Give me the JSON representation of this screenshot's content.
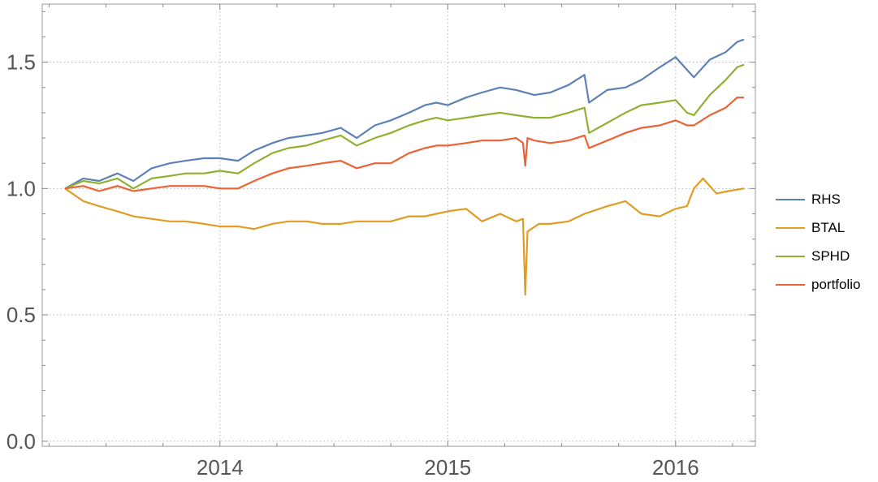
{
  "chart_data": {
    "type": "line",
    "title": "",
    "xlabel": "",
    "ylabel": "",
    "xlim": [
      2013.22,
      2016.35
    ],
    "ylim": [
      -0.02,
      1.73
    ],
    "x_ticks": [
      2014,
      2015,
      2016
    ],
    "x_tick_labels": [
      "2014",
      "2015",
      "2016"
    ],
    "y_ticks": [
      0.0,
      0.5,
      1.0,
      1.5
    ],
    "y_tick_labels": [
      "0.0",
      "0.5",
      "1.0",
      "1.5"
    ],
    "grid": true,
    "legend_position": "right",
    "series": [
      {
        "name": "RHS",
        "color": "#5E81B5",
        "x": [
          2013.32,
          2013.4,
          2013.47,
          2013.55,
          2013.62,
          2013.7,
          2013.78,
          2013.85,
          2013.93,
          2014.0,
          2014.08,
          2014.15,
          2014.23,
          2014.3,
          2014.38,
          2014.45,
          2014.53,
          2014.6,
          2014.68,
          2014.75,
          2014.83,
          2014.9,
          2014.95,
          2015.0,
          2015.08,
          2015.15,
          2015.23,
          2015.3,
          2015.38,
          2015.45,
          2015.53,
          2015.6,
          2015.62,
          2015.7,
          2015.78,
          2015.85,
          2015.93,
          2016.0,
          2016.05,
          2016.08,
          2016.15,
          2016.22,
          2016.27,
          2016.3
        ],
        "y": [
          1.0,
          1.04,
          1.03,
          1.06,
          1.03,
          1.08,
          1.1,
          1.11,
          1.12,
          1.12,
          1.11,
          1.15,
          1.18,
          1.2,
          1.21,
          1.22,
          1.24,
          1.2,
          1.25,
          1.27,
          1.3,
          1.33,
          1.34,
          1.33,
          1.36,
          1.38,
          1.4,
          1.39,
          1.37,
          1.38,
          1.41,
          1.45,
          1.34,
          1.39,
          1.4,
          1.43,
          1.48,
          1.52,
          1.47,
          1.44,
          1.51,
          1.54,
          1.58,
          1.59
        ]
      },
      {
        "name": "BTAL",
        "color": "#E19C24",
        "x": [
          2013.32,
          2013.4,
          2013.47,
          2013.55,
          2013.62,
          2013.7,
          2013.78,
          2013.85,
          2013.93,
          2014.0,
          2014.08,
          2014.15,
          2014.23,
          2014.3,
          2014.38,
          2014.45,
          2014.53,
          2014.6,
          2014.68,
          2014.75,
          2014.83,
          2014.9,
          2014.95,
          2015.0,
          2015.08,
          2015.15,
          2015.23,
          2015.3,
          2015.33,
          2015.34,
          2015.35,
          2015.4,
          2015.45,
          2015.53,
          2015.6,
          2015.7,
          2015.78,
          2015.85,
          2015.93,
          2016.0,
          2016.05,
          2016.08,
          2016.12,
          2016.18,
          2016.23,
          2016.3
        ],
        "y": [
          1.0,
          0.95,
          0.93,
          0.91,
          0.89,
          0.88,
          0.87,
          0.87,
          0.86,
          0.85,
          0.85,
          0.84,
          0.86,
          0.87,
          0.87,
          0.86,
          0.86,
          0.87,
          0.87,
          0.87,
          0.89,
          0.89,
          0.9,
          0.91,
          0.92,
          0.87,
          0.9,
          0.87,
          0.88,
          0.58,
          0.83,
          0.86,
          0.86,
          0.87,
          0.9,
          0.93,
          0.95,
          0.9,
          0.89,
          0.92,
          0.93,
          1.0,
          1.04,
          0.98,
          0.99,
          1.0
        ]
      },
      {
        "name": "SPHD",
        "color": "#8FB131",
        "x": [
          2013.32,
          2013.4,
          2013.47,
          2013.55,
          2013.62,
          2013.7,
          2013.78,
          2013.85,
          2013.93,
          2014.0,
          2014.08,
          2014.15,
          2014.23,
          2014.3,
          2014.38,
          2014.45,
          2014.53,
          2014.6,
          2014.68,
          2014.75,
          2014.83,
          2014.9,
          2014.95,
          2015.0,
          2015.08,
          2015.15,
          2015.23,
          2015.3,
          2015.38,
          2015.45,
          2015.53,
          2015.6,
          2015.62,
          2015.7,
          2015.78,
          2015.85,
          2015.93,
          2016.0,
          2016.05,
          2016.08,
          2016.15,
          2016.22,
          2016.27,
          2016.3
        ],
        "y": [
          1.0,
          1.03,
          1.02,
          1.04,
          1.0,
          1.04,
          1.05,
          1.06,
          1.06,
          1.07,
          1.06,
          1.1,
          1.14,
          1.16,
          1.17,
          1.19,
          1.21,
          1.17,
          1.2,
          1.22,
          1.25,
          1.27,
          1.28,
          1.27,
          1.28,
          1.29,
          1.3,
          1.29,
          1.28,
          1.28,
          1.3,
          1.32,
          1.22,
          1.26,
          1.3,
          1.33,
          1.34,
          1.35,
          1.3,
          1.29,
          1.37,
          1.43,
          1.48,
          1.49
        ]
      },
      {
        "name": "portfolio",
        "color": "#EB6235",
        "x": [
          2013.32,
          2013.4,
          2013.47,
          2013.55,
          2013.62,
          2013.7,
          2013.78,
          2013.85,
          2013.93,
          2014.0,
          2014.08,
          2014.15,
          2014.23,
          2014.3,
          2014.38,
          2014.45,
          2014.53,
          2014.6,
          2014.68,
          2014.75,
          2014.83,
          2014.9,
          2014.95,
          2015.0,
          2015.08,
          2015.15,
          2015.23,
          2015.3,
          2015.33,
          2015.34,
          2015.35,
          2015.38,
          2015.45,
          2015.53,
          2015.6,
          2015.62,
          2015.7,
          2015.78,
          2015.85,
          2015.93,
          2016.0,
          2016.05,
          2016.08,
          2016.15,
          2016.22,
          2016.27,
          2016.3
        ],
        "y": [
          1.0,
          1.01,
          0.99,
          1.01,
          0.99,
          1.0,
          1.01,
          1.01,
          1.01,
          1.0,
          1.0,
          1.03,
          1.06,
          1.08,
          1.09,
          1.1,
          1.11,
          1.08,
          1.1,
          1.1,
          1.14,
          1.16,
          1.17,
          1.17,
          1.18,
          1.19,
          1.19,
          1.2,
          1.18,
          1.09,
          1.2,
          1.19,
          1.18,
          1.19,
          1.21,
          1.16,
          1.19,
          1.22,
          1.24,
          1.25,
          1.27,
          1.25,
          1.25,
          1.29,
          1.32,
          1.36,
          1.36
        ]
      }
    ]
  }
}
